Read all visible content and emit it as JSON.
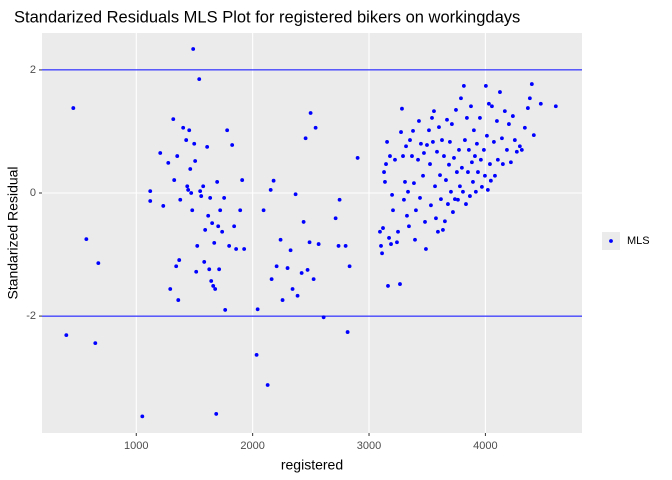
{
  "chart_data": {
    "type": "scatter",
    "title": "Standarized Residuals MLS Plot for registered bikers on workingdays",
    "x_label": "registered",
    "y_label": "Standarized Residual",
    "x": [
      399,
      459,
      571,
      648,
      674,
      1052,
      1120,
      1120,
      1206,
      1232,
      1275,
      1292,
      1318,
      1326,
      1343,
      1352,
      1361,
      1369,
      1378,
      1403,
      1429,
      1438,
      1446,
      1455,
      1464,
      1472,
      1481,
      1489,
      1498,
      1506,
      1515,
      1524,
      1541,
      1549,
      1558,
      1575,
      1584,
      1592,
      1609,
      1618,
      1627,
      1635,
      1644,
      1652,
      1661,
      1670,
      1678,
      1687,
      1695,
      1704,
      1712,
      1721,
      1738,
      1755,
      1764,
      1781,
      1798,
      1824,
      1841,
      1858,
      1893,
      1910,
      1927,
      2034,
      2043,
      2094,
      2129,
      2155,
      2180,
      2163,
      2206,
      2240,
      2257,
      2300,
      2326,
      2343,
      2369,
      2386,
      2421,
      2438,
      2455,
      2472,
      2489,
      2498,
      2524,
      2541,
      2567,
      2610,
      2713,
      2738,
      2747,
      2799,
      2816,
      2833,
      2902,
      3094,
      3103,
      3112,
      3120,
      3129,
      3137,
      3146,
      3155,
      3163,
      3172,
      3180,
      3189,
      3198,
      3206,
      3223,
      3240,
      3249,
      3266,
      3275,
      3283,
      3292,
      3300,
      3309,
      3318,
      3326,
      3335,
      3343,
      3352,
      3369,
      3378,
      3386,
      3395,
      3403,
      3421,
      3429,
      3438,
      3446,
      3464,
      3472,
      3481,
      3489,
      3498,
      3515,
      3524,
      3532,
      3541,
      3549,
      3558,
      3567,
      3575,
      3584,
      3592,
      3601,
      3610,
      3618,
      3627,
      3635,
      3644,
      3652,
      3661,
      3670,
      3678,
      3687,
      3695,
      3704,
      3712,
      3721,
      3730,
      3738,
      3747,
      3755,
      3764,
      3773,
      3781,
      3790,
      3798,
      3807,
      3815,
      3824,
      3833,
      3841,
      3850,
      3858,
      3867,
      3876,
      3884,
      3893,
      3901,
      3910,
      3918,
      3927,
      3936,
      3953,
      3961,
      3970,
      3987,
      3996,
      4004,
      4013,
      4021,
      4030,
      4039,
      4047,
      4056,
      4073,
      4082,
      4099,
      4107,
      4125,
      4142,
      4150,
      4167,
      4185,
      4202,
      4219,
      4236,
      4253,
      4270,
      4296,
      4313,
      4339,
      4365,
      4382,
      4399,
      4416,
      4476,
      4605
    ],
    "series": [
      {
        "name": "MLS",
        "color": "#0000ff",
        "values": [
          -2.31,
          1.38,
          -0.75,
          -2.44,
          -1.14,
          -3.63,
          0.03,
          -0.13,
          0.65,
          -0.21,
          0.49,
          -1.56,
          1.2,
          0.21,
          -1.19,
          0.6,
          -1.74,
          -1.09,
          -0.11,
          1.06,
          0.86,
          0.11,
          0.05,
          1.02,
          0.39,
          0.0,
          -0.28,
          2.34,
          0.8,
          0.52,
          -1.28,
          -0.86,
          1.85,
          0.03,
          -0.05,
          0.11,
          -1.12,
          -0.6,
          0.75,
          -0.37,
          -1.24,
          -0.08,
          -1.43,
          -0.49,
          -1.51,
          -0.81,
          -1.56,
          -3.59,
          0.18,
          -0.54,
          -1.24,
          -0.28,
          -0.63,
          -0.08,
          -1.9,
          1.02,
          -0.86,
          0.78,
          -0.54,
          -0.91,
          -0.28,
          0.21,
          -0.91,
          -2.63,
          -1.89,
          -0.28,
          -3.12,
          0.05,
          0.2,
          -1.4,
          -1.19,
          -0.76,
          -1.74,
          -1.22,
          -0.93,
          -1.56,
          -0.02,
          -1.67,
          -1.3,
          -0.47,
          0.89,
          -1.25,
          -0.8,
          1.3,
          -1.4,
          1.06,
          -0.83,
          -2.02,
          -0.41,
          -0.86,
          -0.11,
          -0.86,
          -2.26,
          -1.19,
          0.57,
          -0.63,
          -0.86,
          -0.98,
          -0.57,
          0.34,
          0.18,
          0.47,
          0.83,
          -1.51,
          -0.73,
          0.6,
          -0.83,
          -0.03,
          -0.28,
          0.54,
          -0.8,
          -0.63,
          -1.48,
          0.99,
          1.37,
          0.6,
          -0.11,
          0.18,
          0.76,
          -0.37,
          0.02,
          -0.54,
          0.86,
          0.6,
          1.01,
          0.16,
          -0.76,
          -0.28,
          0.54,
          1.17,
          -0.08,
          0.8,
          0.28,
          0.65,
          -0.47,
          -0.91,
          0.78,
          1.02,
          0.47,
          -0.2,
          1.22,
          0.83,
          1.33,
          0.11,
          -0.41,
          0.67,
          -0.63,
          1.07,
          0.29,
          -0.1,
          0.86,
          -0.6,
          0.6,
          -0.46,
          0.21,
          1.19,
          -0.18,
          0.46,
          0.83,
          0.02,
          1.12,
          -0.31,
          0.57,
          -0.1,
          1.35,
          0.34,
          -0.11,
          0.7,
          0.11,
          1.54,
          0.41,
          0.02,
          1.74,
          0.86,
          -0.18,
          1.22,
          0.34,
          0.7,
          -0.05,
          1.41,
          0.5,
          0.18,
          1.02,
          0.6,
          0.02,
          0.8,
          0.34,
          1.22,
          0.54,
          0.1,
          0.7,
          0.28,
          1.74,
          0.93,
          0.05,
          1.45,
          0.47,
          0.2,
          1.41,
          0.83,
          0.28,
          1.17,
          0.54,
          1.64,
          0.89,
          0.47,
          1.33,
          0.7,
          1.12,
          0.5,
          1.25,
          0.86,
          0.67,
          0.76,
          0.7,
          1.06,
          1.38,
          1.54,
          1.77,
          0.94,
          1.45,
          1.41
        ]
      }
    ],
    "hlines": [
      2,
      -2
    ],
    "hline_color": "#0000ff",
    "xlim": [
      190,
      4830
    ],
    "ylim": [
      -3.9,
      2.6
    ],
    "xticks": [
      1000,
      2000,
      3000,
      4000
    ],
    "yticks": [
      -2,
      0,
      2
    ],
    "grid": true,
    "legend": "right"
  }
}
